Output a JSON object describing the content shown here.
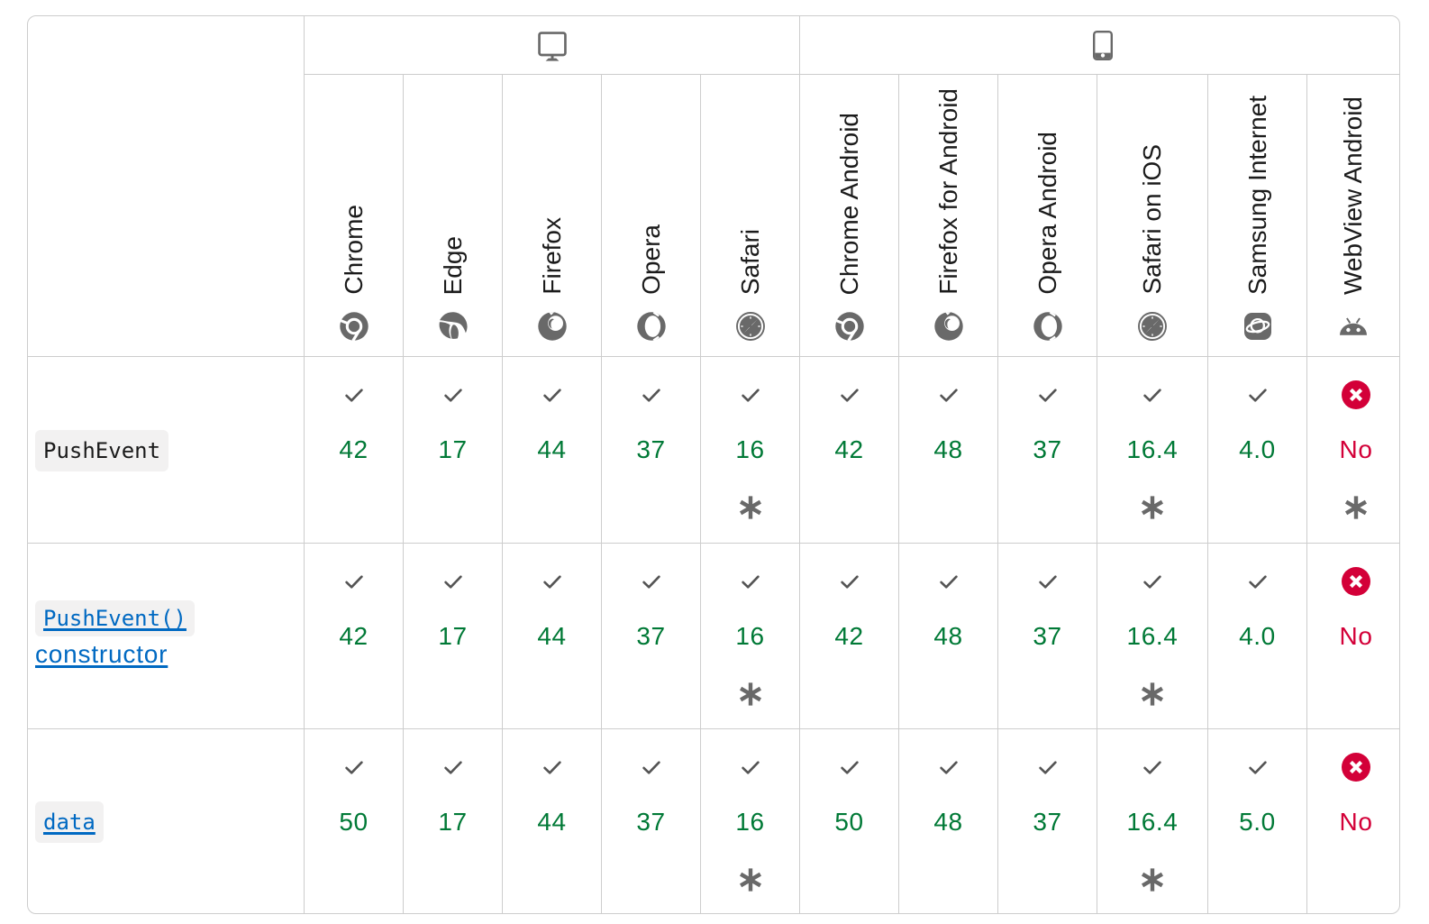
{
  "table": {
    "name": "browser-compatibility-table",
    "platforms": [
      {
        "id": "desktop",
        "icon": "desktop",
        "colspan": 5
      },
      {
        "id": "mobile",
        "icon": "mobile",
        "colspan": 6
      }
    ],
    "browsers": [
      {
        "id": "chrome",
        "name": "Chrome",
        "icon": "chrome"
      },
      {
        "id": "edge",
        "name": "Edge",
        "icon": "edge"
      },
      {
        "id": "firefox",
        "name": "Firefox",
        "icon": "firefox"
      },
      {
        "id": "opera",
        "name": "Opera",
        "icon": "opera"
      },
      {
        "id": "safari",
        "name": "Safari",
        "icon": "safari"
      },
      {
        "id": "chrome_android",
        "name": "Chrome Android",
        "icon": "chrome"
      },
      {
        "id": "firefox_android",
        "name": "Firefox for Android",
        "icon": "firefox"
      },
      {
        "id": "opera_android",
        "name": "Opera Android",
        "icon": "opera"
      },
      {
        "id": "safari_ios",
        "name": "Safari on iOS",
        "icon": "safari"
      },
      {
        "id": "samsunginternet_android",
        "name": "Samsung Internet",
        "icon": "samsung"
      },
      {
        "id": "webview_android",
        "name": "WebView Android",
        "icon": "webview"
      }
    ],
    "rows": [
      {
        "feature": {
          "label": "PushEvent",
          "code": true,
          "link": false
        },
        "support": [
          {
            "status": "yes",
            "version": "42",
            "footnote": false
          },
          {
            "status": "yes",
            "version": "17",
            "footnote": false
          },
          {
            "status": "yes",
            "version": "44",
            "footnote": false
          },
          {
            "status": "yes",
            "version": "37",
            "footnote": false
          },
          {
            "status": "yes",
            "version": "16",
            "footnote": true
          },
          {
            "status": "yes",
            "version": "42",
            "footnote": false
          },
          {
            "status": "yes",
            "version": "48",
            "footnote": false
          },
          {
            "status": "yes",
            "version": "37",
            "footnote": false
          },
          {
            "status": "yes",
            "version": "16.4",
            "footnote": true
          },
          {
            "status": "yes",
            "version": "4.0",
            "footnote": false
          },
          {
            "status": "no",
            "version": "No",
            "footnote": true
          }
        ]
      },
      {
        "feature": {
          "label": "PushEvent()",
          "tail": "constructor",
          "code": true,
          "link": true
        },
        "support": [
          {
            "status": "yes",
            "version": "42",
            "footnote": false
          },
          {
            "status": "yes",
            "version": "17",
            "footnote": false
          },
          {
            "status": "yes",
            "version": "44",
            "footnote": false
          },
          {
            "status": "yes",
            "version": "37",
            "footnote": false
          },
          {
            "status": "yes",
            "version": "16",
            "footnote": true
          },
          {
            "status": "yes",
            "version": "42",
            "footnote": false
          },
          {
            "status": "yes",
            "version": "48",
            "footnote": false
          },
          {
            "status": "yes",
            "version": "37",
            "footnote": false
          },
          {
            "status": "yes",
            "version": "16.4",
            "footnote": true
          },
          {
            "status": "yes",
            "version": "4.0",
            "footnote": false
          },
          {
            "status": "no",
            "version": "No",
            "footnote": false
          }
        ]
      },
      {
        "feature": {
          "label": "data",
          "code": true,
          "link": true
        },
        "support": [
          {
            "status": "yes",
            "version": "50",
            "footnote": false
          },
          {
            "status": "yes",
            "version": "17",
            "footnote": false
          },
          {
            "status": "yes",
            "version": "44",
            "footnote": false
          },
          {
            "status": "yes",
            "version": "37",
            "footnote": false
          },
          {
            "status": "yes",
            "version": "16",
            "footnote": true
          },
          {
            "status": "yes",
            "version": "50",
            "footnote": false
          },
          {
            "status": "yes",
            "version": "48",
            "footnote": false
          },
          {
            "status": "yes",
            "version": "37",
            "footnote": false
          },
          {
            "status": "yes",
            "version": "16.4",
            "footnote": true
          },
          {
            "status": "yes",
            "version": "5.0",
            "footnote": false
          },
          {
            "status": "no",
            "version": "No",
            "footnote": false
          }
        ]
      }
    ]
  },
  "colors": {
    "border": "#cdcdcd",
    "supported_text": "#007936",
    "unsupported_text": "#d30038",
    "icon_gray": "#696969",
    "check_gray": "#545454",
    "link_blue": "#0069c2",
    "code_background": "#f2f1f1",
    "text": "#1b1b1b"
  }
}
